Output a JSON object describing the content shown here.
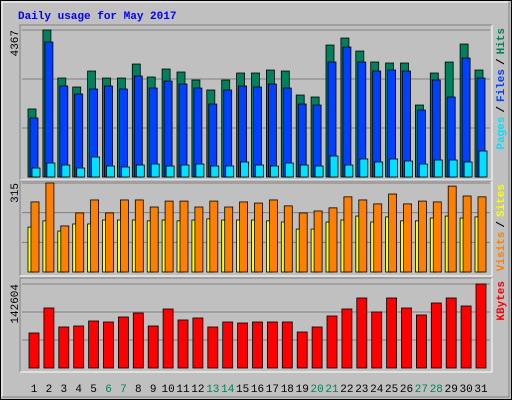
{
  "title": "Daily usage for May 2017",
  "chart_data": [
    {
      "type": "bar",
      "ylim": [
        0,
        4367
      ],
      "yticks": [
        4367
      ],
      "grid": true,
      "legend_separator": "/",
      "series": [
        {
          "name": "Hits",
          "color": "#00805c",
          "values": [
            2020,
            4367,
            2940,
            2673,
            3148,
            2940,
            2940,
            3356,
            2970,
            3208,
            3119,
            2881,
            2584,
            2881,
            3089,
            3089,
            3178,
            3148,
            2435,
            2376,
            3920,
            4128,
            3742,
            3416,
            3386,
            3386,
            2138,
            3089,
            3416,
            3950,
            3178
          ]
        },
        {
          "name": "Files",
          "color": "#0040ff",
          "values": [
            1752,
            4010,
            2703,
            2465,
            2614,
            2703,
            2614,
            3000,
            2643,
            2851,
            2762,
            2643,
            2168,
            2584,
            2703,
            2673,
            2762,
            2643,
            2168,
            2138,
            3416,
            3861,
            3416,
            3148,
            3178,
            3148,
            1990,
            2881,
            2376,
            3534,
            2940
          ]
        },
        {
          "name": "Pages",
          "color": "#00e0ff",
          "values": [
            267,
            416,
            356,
            267,
            594,
            327,
            297,
            356,
            386,
            327,
            356,
            386,
            327,
            327,
            446,
            356,
            327,
            416,
            356,
            327,
            624,
            356,
            535,
            446,
            535,
            475,
            386,
            505,
            505,
            446,
            772
          ]
        }
      ]
    },
    {
      "type": "bar",
      "ylim": [
        0,
        315
      ],
      "yticks": [
        315
      ],
      "grid": true,
      "legend_separator": "/",
      "series": [
        {
          "name": "Sites",
          "color": "#ffff00",
          "values": [
            159,
            181,
            145,
            170,
            170,
            184,
            184,
            184,
            181,
            184,
            181,
            184,
            188,
            184,
            184,
            184,
            181,
            177,
            152,
            152,
            177,
            184,
            198,
            177,
            195,
            181,
            181,
            191,
            198,
            191,
            195
          ]
        },
        {
          "name": "Visits",
          "color": "#ff8000",
          "values": [
            248,
            315,
            163,
            209,
            255,
            209,
            255,
            255,
            230,
            251,
            251,
            230,
            251,
            230,
            248,
            244,
            255,
            234,
            209,
            216,
            227,
            266,
            255,
            241,
            276,
            241,
            251,
            248,
            304,
            269,
            266
          ]
        }
      ]
    },
    {
      "type": "bar",
      "ylim": [
        0,
        142604
      ],
      "yticks": [
        142604
      ],
      "grid": true,
      "categories": [
        "1",
        "2",
        "3",
        "4",
        "5",
        "6",
        "7",
        "8",
        "9",
        "10",
        "11",
        "12",
        "13",
        "14",
        "15",
        "16",
        "17",
        "18",
        "19",
        "20",
        "21",
        "22",
        "23",
        "24",
        "25",
        "26",
        "27",
        "28",
        "29",
        "30",
        "31"
      ],
      "category_colors": [
        "#000000",
        "#000000",
        "#000000",
        "#000000",
        "#000000",
        "#00805c",
        "#00805c",
        "#000000",
        "#000000",
        "#000000",
        "#000000",
        "#000000",
        "#00805c",
        "#00805c",
        "#000000",
        "#000000",
        "#000000",
        "#000000",
        "#000000",
        "#00805c",
        "#00805c",
        "#000000",
        "#000000",
        "#000000",
        "#000000",
        "#000000",
        "#00805c",
        "#00805c",
        "#000000",
        "#000000",
        "#000000"
      ],
      "series": [
        {
          "name": "KBytes",
          "color": "#ff0000",
          "values": [
            59430,
            101880,
            69618,
            71316,
            79806,
            78108,
            86598,
            93390,
            71316,
            100182,
            81504,
            84900,
            69618,
            78108,
            76410,
            78108,
            78108,
            78108,
            61128,
            69618,
            88296,
            100182,
            118860,
            95088,
            118860,
            101880,
            89994,
            110370,
            118860,
            105276,
            142604
          ]
        }
      ]
    }
  ]
}
